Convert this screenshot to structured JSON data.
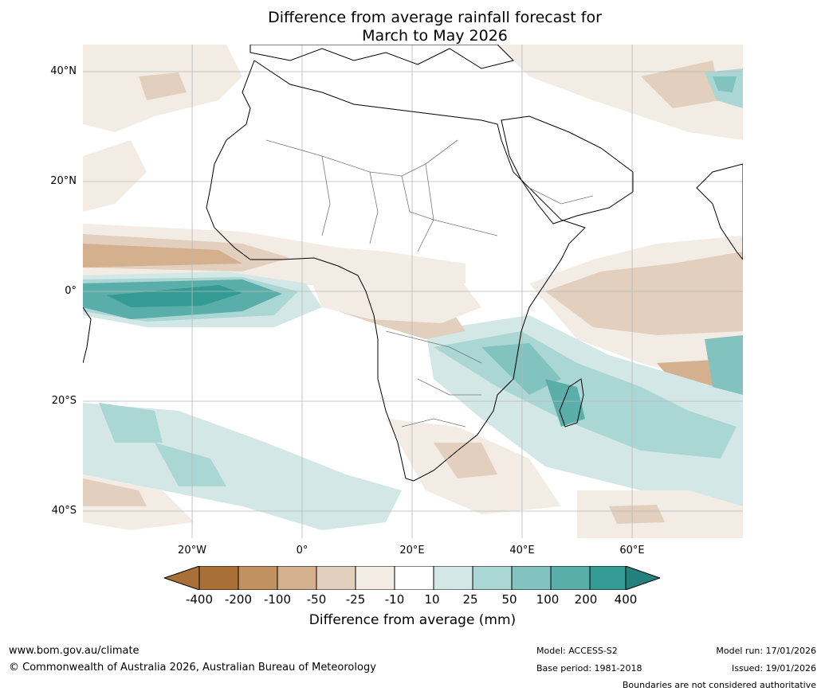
{
  "title": {
    "line1": "Difference from average rainfall forecast for",
    "line2": "March to May 2026"
  },
  "map": {
    "lat_labels": [
      "40°N",
      "20°N",
      "0°",
      "20°S",
      "40°S"
    ],
    "lon_labels": [
      "20°W",
      "0°",
      "20°E",
      "40°E",
      "60°E"
    ],
    "colors": {
      "dry_400": "#a86f36",
      "dry_200": "#c1925f",
      "dry_100": "#d4b08f",
      "dry_50": "#e2cfbd",
      "dry_25": "#f2ece5",
      "neutral": "#ffffff",
      "wet_10": "#d3e8e6",
      "wet_25": "#aad6d3",
      "wet_50": "#82c2bf",
      "wet_100": "#5aaeaa",
      "wet_200": "#349a94",
      "wet_400": "#23807a"
    }
  },
  "colorbar": {
    "labels": [
      "-400",
      "-200",
      "-100",
      "-50",
      "-25",
      "-10",
      "10",
      "25",
      "50",
      "100",
      "200",
      "400"
    ],
    "title": "Difference from average (mm)"
  },
  "footer": {
    "website": "www.bom.gov.au/climate",
    "copyright": "© Commonwealth of Australia 2026, Australian Bureau of Meteorology",
    "model": "Model: ACCESS-S2",
    "base_period": "Base period: 1981-2018",
    "model_run": "Model run: 17/01/2026",
    "issued": "Issued: 19/01/2026",
    "boundaries": "Boundaries are not considered authoritative"
  }
}
